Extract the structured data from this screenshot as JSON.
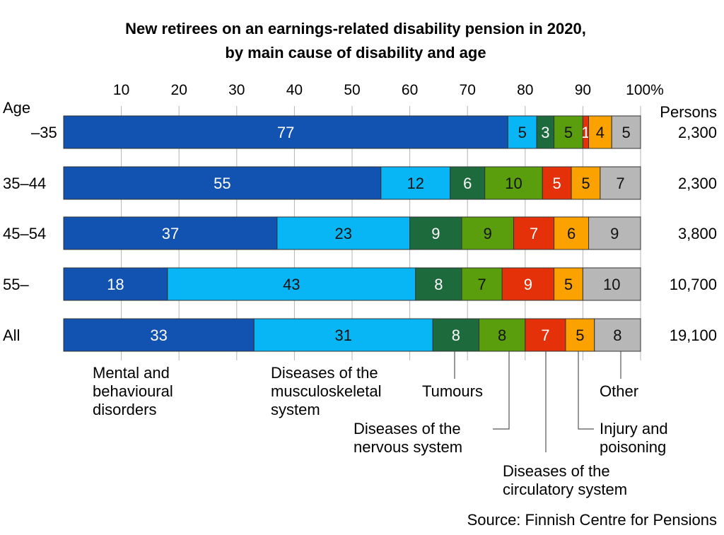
{
  "chart_data": {
    "type": "stacked-bar-horizontal",
    "title_line1": "New retirees on an earnings-related disability pension in 2020,",
    "title_line2": "by main cause of disability and age",
    "xlim": [
      0,
      100
    ],
    "x_ticks": [
      "10",
      "20",
      "30",
      "40",
      "50",
      "60",
      "70",
      "80",
      "90",
      "100%"
    ],
    "row_axis_label": "Age",
    "persons_label": "Persons",
    "categories": [
      "–35",
      "35–44",
      "45–54",
      "55–",
      "All"
    ],
    "persons": [
      "2,300",
      "2,300",
      "3,800",
      "10,700",
      "19,100"
    ],
    "series": [
      {
        "name": "Mental and behavioural disorders",
        "color": "#1253B2",
        "text_color": "#ffffff",
        "values": [
          77,
          55,
          37,
          18,
          33
        ]
      },
      {
        "name": "Diseases of the musculoskeletal system",
        "color": "#08B6F5",
        "text_color": "#111111",
        "values": [
          5,
          12,
          23,
          43,
          31
        ]
      },
      {
        "name": "Tumours",
        "color": "#1D6B3D",
        "text_color": "#ffffff",
        "values": [
          3,
          6,
          9,
          8,
          8
        ]
      },
      {
        "name": "Diseases of the nervous system",
        "color": "#5A9E0E",
        "text_color": "#111111",
        "values": [
          5,
          10,
          9,
          7,
          8
        ]
      },
      {
        "name": "Diseases of the circulatory system",
        "color": "#E5310A",
        "text_color": "#ffffff",
        "values": [
          1,
          5,
          7,
          9,
          7
        ]
      },
      {
        "name": "Injury and poisoning",
        "color": "#FBA200",
        "text_color": "#111111",
        "values": [
          4,
          5,
          6,
          5,
          5
        ]
      },
      {
        "name": "Other",
        "color": "#B7B7B7",
        "text_color": "#111111",
        "values": [
          5,
          7,
          9,
          10,
          8
        ]
      }
    ],
    "legend_lines": {
      "mental": [
        "Mental and",
        "behavioural",
        "disorders"
      ],
      "musculoskeletal": [
        "Diseases of the",
        "musculoskeletal",
        "system"
      ],
      "tumours": [
        "Tumours"
      ],
      "nervous": [
        "Diseases of the",
        "nervous system"
      ],
      "circulatory": [
        "Diseases of the",
        "circulatory system"
      ],
      "injury": [
        "Injury and",
        "poisoning"
      ],
      "other": [
        "Other"
      ]
    },
    "source": "Source: Finnish Centre for Pensions"
  }
}
